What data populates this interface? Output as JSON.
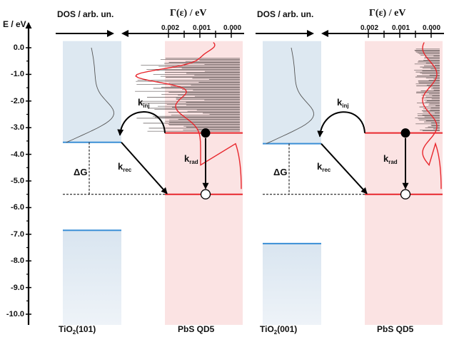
{
  "y_axis": {
    "label": "E / eV",
    "ticks": [
      "0.0",
      "-1.0",
      "-2.0",
      "-3.0",
      "-4.0",
      "-5.0",
      "-6.0",
      "-7.0",
      "-8.0",
      "-9.0",
      "-10.0"
    ],
    "values": [
      0,
      -1,
      -2,
      -3,
      -4,
      -5,
      -6,
      -7,
      -8,
      -9,
      -10
    ]
  },
  "panels": [
    {
      "dos_label": "DOS / arb. un.",
      "gamma_label": "Γ(ε) / eV",
      "gamma_ticks": [
        "0.002",
        "0.001",
        "0.000"
      ],
      "bottom_left": {
        "main": "TiO",
        "sub": "2",
        "rest": "(101)"
      },
      "bottom_right": "PbS QD5",
      "k_inj": {
        "k": "k",
        "sub": "inj"
      },
      "k_rec": {
        "k": "k",
        "sub": "rec"
      },
      "k_rad": {
        "k": "k",
        "sub": "rad"
      },
      "delta_g": "ΔG",
      "tio2_cb_edge_ev": -3.55,
      "tio2_vb_edge_ev": -6.85,
      "qd_excited_ev": -3.2,
      "qd_ground_ev": -5.5
    },
    {
      "dos_label": "DOS / arb. un.",
      "gamma_label": "Γ(ε) / eV",
      "gamma_ticks": [
        "0.002",
        "0.001",
        "0.000"
      ],
      "bottom_left": {
        "main": "TiO",
        "sub": "2",
        "rest": "(001)"
      },
      "bottom_right": "PbS QD5",
      "k_inj": {
        "k": "k",
        "sub": "inj"
      },
      "k_rec": {
        "k": "k",
        "sub": "rec"
      },
      "k_rad": {
        "k": "k",
        "sub": "rad"
      },
      "delta_g": "ΔG",
      "tio2_cb_edge_ev": -3.6,
      "tio2_vb_edge_ev": -7.35,
      "qd_excited_ev": -3.2,
      "qd_ground_ev": -5.5
    }
  ],
  "colors": {
    "tio2_fill": "#dde8f1",
    "qd_fill": "#fbe3e3",
    "tio2_level": "#3b8fd6",
    "qd_level": "#e8282e",
    "gamma_curve": "#e8282e",
    "gamma_bars": "#3a3030"
  }
}
